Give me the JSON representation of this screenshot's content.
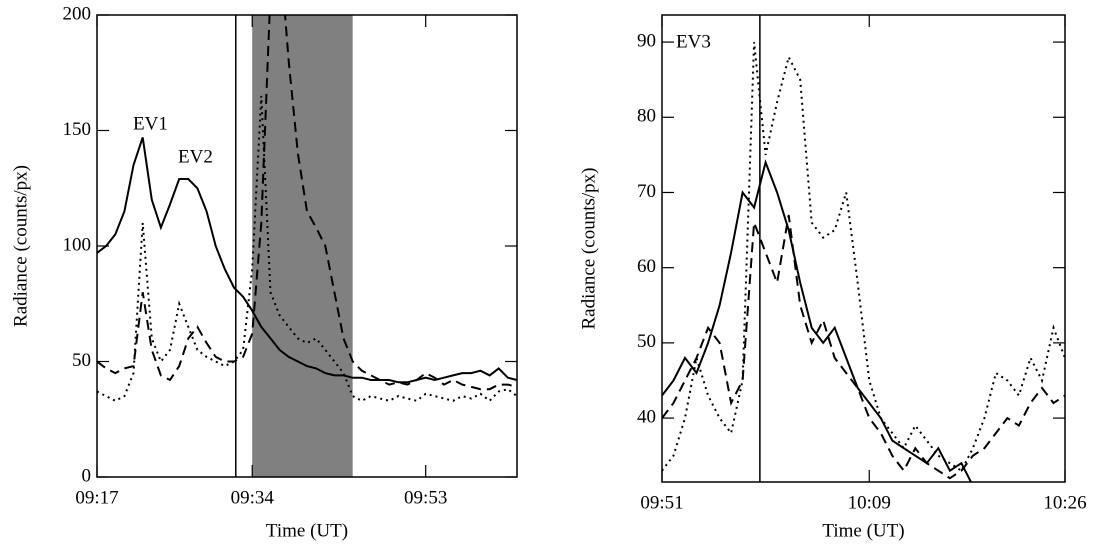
{
  "chart_data": [
    {
      "type": "line",
      "xlabel": "Time (UT)",
      "ylabel": "Radiance (counts/px)",
      "annotations": [
        "EV1",
        "EV2"
      ],
      "x": [
        557,
        558,
        559,
        560,
        561,
        562,
        563,
        564,
        565,
        566,
        567,
        568,
        569,
        570,
        571,
        572,
        573,
        574,
        575,
        576,
        577,
        578,
        579,
        580,
        581,
        582,
        583,
        584,
        585,
        586,
        587,
        588,
        589,
        590,
        591,
        592,
        593,
        594,
        595,
        596,
        597,
        598,
        599,
        600,
        601,
        602,
        603
      ],
      "series": [
        {
          "color": "#000000",
          "dash": "solid",
          "values": [
            97,
            100,
            105,
            115,
            135,
            147,
            120,
            108,
            118,
            129,
            129,
            125,
            115,
            100,
            90,
            82,
            78,
            72,
            65,
            60,
            55,
            52,
            50,
            48,
            47,
            45,
            44,
            44,
            43,
            43,
            42,
            42,
            42,
            41,
            41,
            42,
            43,
            42,
            43,
            44,
            45,
            45,
            46,
            44,
            47,
            43,
            42
          ]
        },
        {
          "color": "#000000",
          "dash": "dashed",
          "values": [
            50,
            47,
            45,
            47,
            48,
            80,
            55,
            44,
            42,
            48,
            60,
            65,
            58,
            52,
            50,
            50,
            52,
            62,
            110,
            210,
            230,
            180,
            140,
            115,
            108,
            100,
            80,
            60,
            50,
            46,
            44,
            42,
            40,
            41,
            40,
            42,
            45,
            43,
            40,
            42,
            40,
            39,
            38,
            38,
            40,
            40,
            39
          ]
        },
        {
          "color": "#000000",
          "dash": "dotted",
          "values": [
            37,
            35,
            33,
            35,
            45,
            110,
            60,
            50,
            55,
            75,
            65,
            55,
            52,
            50,
            48,
            50,
            55,
            90,
            165,
            80,
            70,
            65,
            60,
            58,
            60,
            55,
            50,
            45,
            35,
            33,
            35,
            34,
            33,
            35,
            34,
            33,
            36,
            35,
            34,
            33,
            35,
            34,
            36,
            33,
            37,
            38,
            35
          ]
        }
      ],
      "vlines": [
        572.2
      ],
      "span": [
        574,
        585
      ],
      "span_color": "#808080",
      "xlim": [
        557,
        603
      ],
      "xticks": [
        {
          "value": 557,
          "label": "09:17"
        },
        {
          "value": 574,
          "label": "09:34"
        },
        {
          "value": 593,
          "label": "09:53"
        }
      ],
      "ylim": [
        0,
        200
      ],
      "yticks": [
        0,
        50,
        100,
        150,
        200
      ]
    },
    {
      "type": "line",
      "xlabel": "Time (UT)",
      "ylabel": "Radiance (counts/px)",
      "annotations": [
        "EV3"
      ],
      "x": [
        591,
        592,
        593,
        594,
        595,
        596,
        597,
        598,
        599,
        600,
        601,
        602,
        603,
        604,
        605,
        606,
        607,
        608,
        609,
        610,
        611,
        612,
        613,
        614,
        615,
        616,
        617,
        618,
        619,
        620,
        621,
        622,
        623,
        624,
        625,
        626
      ],
      "series": [
        {
          "color": "#000000",
          "dash": "solid",
          "values": [
            43,
            45,
            48,
            46,
            50,
            55,
            62,
            70,
            68,
            74,
            70,
            65,
            58,
            52,
            50,
            52,
            48,
            44,
            42,
            40,
            37,
            36,
            35,
            34,
            36,
            33,
            34,
            31,
            30,
            null,
            null,
            null,
            null,
            null,
            null,
            null
          ]
        },
        {
          "color": "#000000",
          "dash": "dashed",
          "values": [
            40,
            42,
            45,
            48,
            52,
            50,
            42,
            45,
            66,
            62,
            58,
            67,
            55,
            50,
            53,
            48,
            46,
            44,
            40,
            38,
            35,
            33,
            36,
            34,
            33,
            32,
            33,
            35,
            36,
            38,
            40,
            39,
            42,
            44,
            42,
            43
          ]
        },
        {
          "color": "#000000",
          "dash": "dotted",
          "values": [
            33,
            35,
            40,
            48,
            43,
            40,
            38,
            45,
            90,
            75,
            82,
            88,
            85,
            66,
            64,
            65,
            70,
            58,
            45,
            40,
            38,
            36,
            39,
            37,
            35,
            34,
            33,
            36,
            40,
            46,
            45,
            43,
            48,
            45,
            52,
            48
          ]
        }
      ],
      "vlines": [
        599.5
      ],
      "xlim": [
        591,
        626
      ],
      "xticks": [
        {
          "value": 591,
          "label": "09:51"
        },
        {
          "value": 609,
          "label": "10:09"
        },
        {
          "value": 626,
          "label": "10:26"
        }
      ],
      "ylim": [
        31.5,
        93.6
      ],
      "yticks": [
        40,
        50,
        60,
        70,
        80,
        90
      ]
    }
  ]
}
